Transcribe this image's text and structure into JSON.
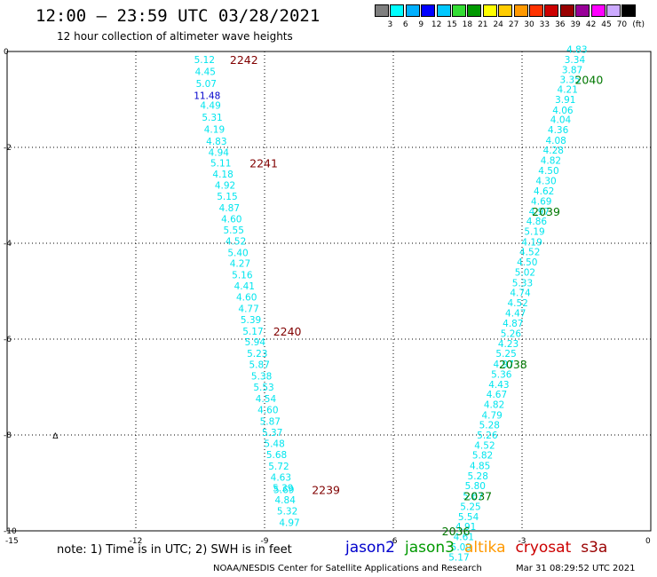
{
  "header": {
    "title": "12:00 – 23:59 UTC 03/28/2021",
    "subtitle": "12 hour collection of altimeter wave heights"
  },
  "color_scale": {
    "colors": [
      "#7f7f7f",
      "#00ffff",
      "#00b0ff",
      "#0000ff",
      "#00c8ff",
      "#33dd33",
      "#009900",
      "#ffff00",
      "#ffcc00",
      "#ff9900",
      "#ff3300",
      "#cc0000",
      "#990000",
      "#990099",
      "#ff00ff",
      "#ccaaff",
      "#000000"
    ],
    "labels": [
      "3",
      "6",
      "9",
      "12",
      "15",
      "18",
      "21",
      "24",
      "27",
      "30",
      "33",
      "36",
      "39",
      "42",
      "45",
      "70"
    ],
    "unit": "(ft)"
  },
  "chart_data": {
    "type": "scatter",
    "title": "12:00 – 23:59 UTC 03/28/2021",
    "subtitle": "12 hour collection of altimeter wave heights",
    "xlim": [
      -15,
      0
    ],
    "ylim": [
      -10,
      0
    ],
    "x_ticks": [
      "-15",
      "-12",
      "-9",
      "-6",
      "-3",
      "0"
    ],
    "y_ticks": [
      "0",
      "-2",
      "-4",
      "-6",
      "-8",
      "-10"
    ],
    "grid": true,
    "series": [
      {
        "name": "altimeter SWH track 1",
        "points": [
          {
            "x": -10.4,
            "y": -0.17,
            "v": "5.12"
          },
          {
            "x": -10.38,
            "y": -0.42,
            "v": "4.45"
          },
          {
            "x": -10.36,
            "y": -0.67,
            "v": "5.07"
          },
          {
            "x": -10.34,
            "y": -0.92,
            "v": "11.48"
          },
          {
            "x": -10.26,
            "y": -1.12,
            "v": "4.49"
          },
          {
            "x": -10.22,
            "y": -1.37,
            "v": "5.31"
          },
          {
            "x": -10.17,
            "y": -1.62,
            "v": "4.19"
          },
          {
            "x": -10.12,
            "y": -1.87,
            "v": "4.83"
          },
          {
            "x": -10.07,
            "y": -2.1,
            "v": "4.94"
          },
          {
            "x": -10.02,
            "y": -2.32,
            "v": "5.11"
          },
          {
            "x": -9.97,
            "y": -2.56,
            "v": "4.18"
          },
          {
            "x": -9.92,
            "y": -2.79,
            "v": "4.92"
          },
          {
            "x": -9.87,
            "y": -3.02,
            "v": "5.15"
          },
          {
            "x": -9.82,
            "y": -3.26,
            "v": "4.87"
          },
          {
            "x": -9.77,
            "y": -3.49,
            "v": "4.60"
          },
          {
            "x": -9.72,
            "y": -3.72,
            "v": "5.55"
          },
          {
            "x": -9.67,
            "y": -3.95,
            "v": "4.52"
          },
          {
            "x": -9.62,
            "y": -4.19,
            "v": "5.40"
          },
          {
            "x": -9.57,
            "y": -4.42,
            "v": "4.27"
          },
          {
            "x": -9.52,
            "y": -4.66,
            "v": "5.16"
          },
          {
            "x": -9.47,
            "y": -4.89,
            "v": "4.41"
          },
          {
            "x": -9.42,
            "y": -5.12,
            "v": "4.60"
          },
          {
            "x": -9.37,
            "y": -5.36,
            "v": "4.77"
          },
          {
            "x": -9.32,
            "y": -5.59,
            "v": "5.39"
          },
          {
            "x": -9.27,
            "y": -5.83,
            "v": "5.17"
          },
          {
            "x": -9.22,
            "y": -6.06,
            "v": "5.94"
          },
          {
            "x": -9.17,
            "y": -6.3,
            "v": "5.23"
          },
          {
            "x": -9.12,
            "y": -6.53,
            "v": "5.87"
          },
          {
            "x": -9.07,
            "y": -6.77,
            "v": "5.38"
          },
          {
            "x": -9.02,
            "y": -7.0,
            "v": "5.53"
          },
          {
            "x": -8.97,
            "y": -7.24,
            "v": "4.54"
          },
          {
            "x": -8.92,
            "y": -7.47,
            "v": "4.60"
          },
          {
            "x": -8.87,
            "y": -7.71,
            "v": "5.87"
          },
          {
            "x": -8.82,
            "y": -7.94,
            "v": "5.37"
          },
          {
            "x": -8.77,
            "y": -8.18,
            "v": "5.48"
          },
          {
            "x": -8.72,
            "y": -8.41,
            "v": "5.68"
          },
          {
            "x": -8.67,
            "y": -8.65,
            "v": "5.72"
          },
          {
            "x": -8.62,
            "y": -8.88,
            "v": "4.63"
          },
          {
            "x": -8.57,
            "y": -9.1,
            "v": "5.39"
          },
          {
            "x": -8.55,
            "y": -9.14,
            "v": "5.69"
          },
          {
            "x": -8.52,
            "y": -9.35,
            "v": "4.84"
          },
          {
            "x": -8.47,
            "y": -9.58,
            "v": "5.32"
          },
          {
            "x": -8.42,
            "y": -9.82,
            "v": "4.97"
          }
        ]
      },
      {
        "name": "altimeter SWH track 2",
        "points": [
          {
            "x": -1.72,
            "y": 0.05,
            "v": "4.83"
          },
          {
            "x": -1.77,
            "y": -0.17,
            "v": "3.34"
          },
          {
            "x": -1.83,
            "y": -0.38,
            "v": "3.87"
          },
          {
            "x": -1.88,
            "y": -0.58,
            "v": "3.35"
          },
          {
            "x": -1.94,
            "y": -0.79,
            "v": "4.21"
          },
          {
            "x": -1.99,
            "y": -1.0,
            "v": "3.91"
          },
          {
            "x": -2.05,
            "y": -1.22,
            "v": "4.06"
          },
          {
            "x": -2.1,
            "y": -1.42,
            "v": "4.04"
          },
          {
            "x": -2.16,
            "y": -1.63,
            "v": "4.36"
          },
          {
            "x": -2.21,
            "y": -1.85,
            "v": "4.08"
          },
          {
            "x": -2.27,
            "y": -2.06,
            "v": "4.28"
          },
          {
            "x": -2.33,
            "y": -2.27,
            "v": "4.82"
          },
          {
            "x": -2.38,
            "y": -2.48,
            "v": "4.50"
          },
          {
            "x": -2.44,
            "y": -2.69,
            "v": "4.30"
          },
          {
            "x": -2.49,
            "y": -2.91,
            "v": "4.62"
          },
          {
            "x": -2.55,
            "y": -3.12,
            "v": "4.69"
          },
          {
            "x": -2.6,
            "y": -3.33,
            "v": "4.97"
          },
          {
            "x": -2.66,
            "y": -3.54,
            "v": "4.86"
          },
          {
            "x": -2.71,
            "y": -3.75,
            "v": "5.19"
          },
          {
            "x": -2.77,
            "y": -3.97,
            "v": "4.19"
          },
          {
            "x": -2.82,
            "y": -4.18,
            "v": "4.52"
          },
          {
            "x": -2.88,
            "y": -4.39,
            "v": "4.50"
          },
          {
            "x": -2.93,
            "y": -4.6,
            "v": "5.02"
          },
          {
            "x": -2.99,
            "y": -4.82,
            "v": "5.33"
          },
          {
            "x": -3.04,
            "y": -5.03,
            "v": "4.74"
          },
          {
            "x": -3.1,
            "y": -5.24,
            "v": "4.52"
          },
          {
            "x": -3.15,
            "y": -5.45,
            "v": "4.47"
          },
          {
            "x": -3.21,
            "y": -5.67,
            "v": "4.87"
          },
          {
            "x": -3.26,
            "y": -5.88,
            "v": "5.26"
          },
          {
            "x": -3.32,
            "y": -6.09,
            "v": "4.23"
          },
          {
            "x": -3.37,
            "y": -6.3,
            "v": "5.25"
          },
          {
            "x": -3.43,
            "y": -6.52,
            "v": "4.97"
          },
          {
            "x": -3.48,
            "y": -6.73,
            "v": "5.36"
          },
          {
            "x": -3.54,
            "y": -6.94,
            "v": "4.43"
          },
          {
            "x": -3.59,
            "y": -7.15,
            "v": "4.67"
          },
          {
            "x": -3.65,
            "y": -7.36,
            "v": "4.82"
          },
          {
            "x": -3.7,
            "y": -7.58,
            "v": "4.79"
          },
          {
            "x": -3.76,
            "y": -7.79,
            "v": "5.28"
          },
          {
            "x": -3.81,
            "y": -8.0,
            "v": "5.26"
          },
          {
            "x": -3.87,
            "y": -8.21,
            "v": "4.52"
          },
          {
            "x": -3.92,
            "y": -8.42,
            "v": "5.82"
          },
          {
            "x": -3.98,
            "y": -8.64,
            "v": "4.85"
          },
          {
            "x": -4.03,
            "y": -8.85,
            "v": "5.28"
          },
          {
            "x": -4.09,
            "y": -9.06,
            "v": "5.80"
          },
          {
            "x": -4.14,
            "y": -9.27,
            "v": "5.67"
          },
          {
            "x": -4.2,
            "y": -9.49,
            "v": "5.25"
          },
          {
            "x": -4.25,
            "y": -9.7,
            "v": "5.54"
          },
          {
            "x": -4.31,
            "y": -9.91,
            "v": "4.91"
          },
          {
            "x": -4.36,
            "y": -10.12,
            "v": "4.61"
          },
          {
            "x": -4.42,
            "y": -10.33,
            "v": "5.09"
          },
          {
            "x": -4.47,
            "y": -10.55,
            "v": "5.17"
          }
        ]
      }
    ],
    "time_labels": [
      {
        "text": "2242",
        "x": -9.48,
        "y": -0.17,
        "color": "#800000"
      },
      {
        "text": "2241",
        "x": -9.02,
        "y": -2.32,
        "color": "#800000"
      },
      {
        "text": "2240",
        "x": -8.47,
        "y": -5.83,
        "color": "#800000"
      },
      {
        "text": "2239",
        "x": -7.57,
        "y": -9.14,
        "color": "#800000"
      },
      {
        "text": "2040",
        "x": -1.44,
        "y": -0.58,
        "color": "#007700"
      },
      {
        "text": "2039",
        "x": -2.44,
        "y": -3.33,
        "color": "#007700"
      },
      {
        "text": "2038",
        "x": -3.21,
        "y": -6.52,
        "color": "#007700"
      },
      {
        "text": "2037",
        "x": -4.03,
        "y": -9.27,
        "color": "#007700"
      },
      {
        "text": "2036",
        "x": -4.54,
        "y": -10.0,
        "color": "#007700"
      }
    ],
    "markers": [
      {
        "text": "∆",
        "x": -14.0,
        "y": -8.0,
        "color": "#000000"
      }
    ]
  },
  "colors": {
    "track_values": "#00e5ee",
    "highlight_value": "#0000cc",
    "pass_time_track1": "#800000",
    "pass_time_track2": "#007700"
  },
  "footnote": "note: 1) Time is in UTC; 2) SWH is in feet",
  "legend": [
    {
      "label": "jason2",
      "color": "#0000cc"
    },
    {
      "label": "jason3",
      "color": "#009900"
    },
    {
      "label": "altika",
      "color": "#ff9900"
    },
    {
      "label": "cryosat",
      "color": "#cc0000"
    },
    {
      "label": "s3a",
      "color": "#990000"
    }
  ],
  "credit": "NOAA/NESDIS Center for Satellite Applications and Research",
  "credit_time": "Mar 31 08:29:52 UTC 2021"
}
